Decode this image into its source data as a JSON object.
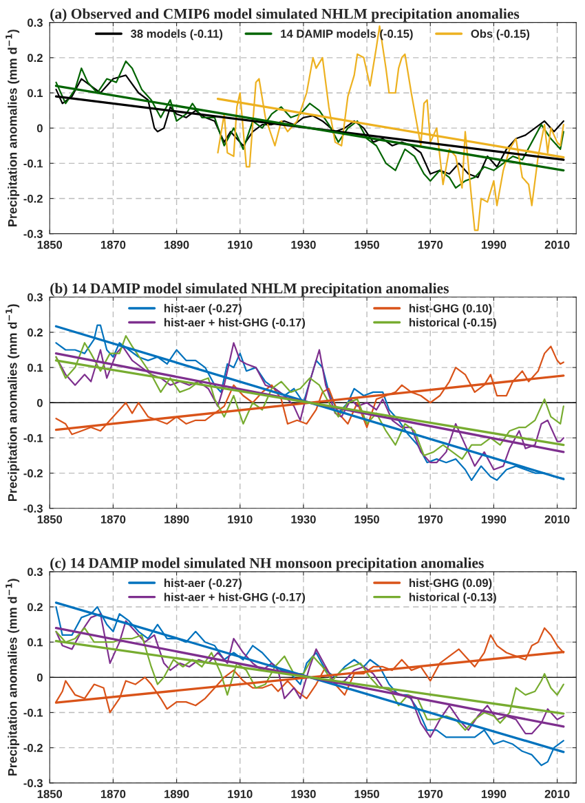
{
  "chart_data": [
    {
      "type": "line",
      "title": "(a) Observed and CMIP6 model simulated NHLM precipitation anomalies",
      "ylabel": "Precipitation anomalies (mm d$^{−1}$)",
      "xlim": [
        1850,
        2016
      ],
      "xticks": [
        1850,
        1870,
        1890,
        1910,
        1930,
        1950,
        1970,
        1990,
        2010
      ],
      "ylim": [
        -0.3,
        0.3
      ],
      "yticks": [
        -0.3,
        -0.2,
        -0.1,
        0,
        0.1,
        0.2,
        0.3
      ],
      "grid": true,
      "legend": "top",
      "line_style": "solid",
      "marker": "none",
      "series": [
        {
          "name": "38 models (-0.11)",
          "color": "#000000",
          "x": [
            1852,
            1854,
            1857,
            1860,
            1863,
            1866,
            1870,
            1874,
            1878,
            1881,
            1883,
            1884,
            1886,
            1888,
            1890,
            1893,
            1896,
            1899,
            1902,
            1905,
            1907,
            1911,
            1914,
            1917,
            1920,
            1924,
            1927,
            1930,
            1933,
            1936,
            1940,
            1943,
            1946,
            1949,
            1952,
            1955,
            1958,
            1961,
            1964,
            1967,
            1970,
            1973,
            1976,
            1979,
            1982,
            1985,
            1988,
            1991,
            1994,
            1997,
            2000,
            2003,
            2006,
            2009,
            2012
          ],
          "values": [
            0.11,
            0.07,
            0.09,
            0.14,
            0.12,
            0.1,
            0.14,
            0.15,
            0.1,
            0.08,
            0.0,
            -0.01,
            0.0,
            0.06,
            0.04,
            0.03,
            0.05,
            0.03,
            0.02,
            -0.04,
            -0.01,
            -0.05,
            -0.01,
            0.01,
            0.01,
            0.02,
            0.01,
            0.03,
            0.035,
            0.02,
            -0.01,
            0.0,
            0.02,
            0.0,
            -0.04,
            -0.03,
            -0.05,
            -0.04,
            -0.05,
            -0.07,
            -0.13,
            -0.12,
            -0.13,
            -0.1,
            -0.13,
            -0.14,
            -0.08,
            -0.11,
            -0.06,
            -0.03,
            -0.02,
            0.0,
            0.02,
            -0.01,
            0.02
          ]
        },
        {
          "name": "14 DAMIP models (-0.15)",
          "color": "#006400",
          "x": [
            1852,
            1855,
            1858,
            1860,
            1862,
            1865,
            1868,
            1871,
            1874,
            1876,
            1879,
            1882,
            1885,
            1888,
            1890,
            1893,
            1895,
            1898,
            1902,
            1905,
            1908,
            1911,
            1914,
            1917,
            1920,
            1923,
            1926,
            1929,
            1932,
            1935,
            1938,
            1941,
            1944,
            1947,
            1950,
            1953,
            1956,
            1959,
            1962,
            1965,
            1968,
            1970,
            1973,
            1976,
            1978,
            1981,
            1984,
            1987,
            1990,
            1993,
            1996,
            1999,
            2002,
            2005,
            2008,
            2011,
            2012
          ],
          "values": [
            0.13,
            0.07,
            0.11,
            0.17,
            0.13,
            0.1,
            0.14,
            0.13,
            0.19,
            0.17,
            0.11,
            0.08,
            0.03,
            0.08,
            0.02,
            0.04,
            0.07,
            0.03,
            0.03,
            -0.05,
            0.0,
            -0.06,
            0.02,
            0.0,
            0.04,
            0.06,
            0.03,
            0.04,
            0.07,
            0.05,
            0.01,
            -0.04,
            0.0,
            0.02,
            -0.03,
            -0.05,
            -0.1,
            -0.12,
            -0.06,
            -0.08,
            -0.13,
            -0.15,
            -0.12,
            -0.14,
            -0.17,
            -0.15,
            -0.14,
            -0.11,
            -0.12,
            -0.1,
            -0.08,
            -0.09,
            -0.04,
            0.01,
            -0.03,
            -0.06,
            -0.01
          ]
        },
        {
          "name": "Obs (-0.15)",
          "color": "#edb120",
          "x": [
            1903,
            1905,
            1906,
            1908,
            1909,
            1910,
            1912,
            1913,
            1915,
            1916,
            1918,
            1921,
            1923,
            1925,
            1928,
            1931,
            1933,
            1934,
            1936,
            1938,
            1940,
            1942,
            1944,
            1946,
            1947,
            1949,
            1951,
            1953,
            1954,
            1956,
            1957,
            1959,
            1960,
            1961,
            1962,
            1964,
            1966,
            1967,
            1968,
            1969,
            1970,
            1972,
            1974,
            1976,
            1978,
            1980,
            1981,
            1983,
            1984,
            1985,
            1986,
            1988,
            1990,
            1991,
            1993,
            1995,
            1997,
            1999,
            2001,
            2002,
            2004,
            2006,
            2007,
            2008,
            2010,
            2011,
            2012
          ],
          "values": [
            -0.07,
            0.04,
            -0.07,
            -0.08,
            0.06,
            0.1,
            -0.11,
            -0.11,
            0.13,
            0.14,
            0.03,
            -0.05,
            0.02,
            -0.01,
            0.02,
            0.1,
            0.2,
            0.17,
            0.2,
            0.06,
            -0.04,
            -0.05,
            0.09,
            0.15,
            0.21,
            0.2,
            0.12,
            0.23,
            0.29,
            0.17,
            0.1,
            0.1,
            0.17,
            0.2,
            0.21,
            0.1,
            0.0,
            -0.05,
            0.07,
            0.08,
            -0.04,
            0.0,
            -0.16,
            -0.06,
            -0.08,
            -0.17,
            -0.01,
            -0.2,
            -0.29,
            -0.29,
            -0.2,
            -0.21,
            -0.15,
            -0.22,
            -0.12,
            -0.06,
            -0.03,
            -0.14,
            -0.16,
            -0.22,
            -0.08,
            0.01,
            -0.07,
            0.0,
            -0.04,
            -0.05,
            0.01
          ]
        },
        {
          "color": "#000000",
          "x": [
            1852,
            2012
          ],
          "values": [
            0.09,
            -0.09
          ]
        },
        {
          "color": "#006400",
          "x": [
            1852,
            2012
          ],
          "values": [
            0.12,
            -0.12
          ]
        },
        {
          "color": "#edb120",
          "x": [
            1903,
            2012
          ],
          "values": [
            0.083,
            -0.083
          ]
        }
      ]
    },
    {
      "type": "line",
      "title": "(b) 14 DAMIP model simulated NHLM precipitation anomalies",
      "ylabel": "Precipitation anomalies (mm d$^{−1}$)",
      "xlim": [
        1850,
        2016
      ],
      "xticks": [
        1850,
        1870,
        1890,
        1910,
        1930,
        1950,
        1970,
        1990,
        2010
      ],
      "ylim": [
        -0.3,
        0.3
      ],
      "yticks": [
        -0.3,
        -0.2,
        -0.1,
        0,
        0.1,
        0.2,
        0.3
      ],
      "grid": true,
      "legend": "top",
      "line_style": "solid",
      "marker": "none",
      "ref_lines": [
        {
          "axis": "y",
          "value": 0,
          "color": "#000000"
        }
      ],
      "series": [
        {
          "name": "hist-aer (-0.27)",
          "color": "#0072bd",
          "x": [
            1852,
            1855,
            1858,
            1861,
            1864,
            1865,
            1866,
            1868,
            1870,
            1872,
            1875,
            1878,
            1881,
            1884,
            1887,
            1890,
            1893,
            1896,
            1899,
            1902,
            1904,
            1906,
            1908,
            1910,
            1912,
            1915,
            1918,
            1921,
            1924,
            1927,
            1930,
            1932,
            1934,
            1936,
            1938,
            1941,
            1944,
            1946,
            1949,
            1952,
            1955,
            1957,
            1960,
            1963,
            1966,
            1969,
            1972,
            1975,
            1978,
            1981,
            1983,
            1986,
            1989,
            1991,
            1994,
            1997,
            2000,
            2003,
            2006,
            2009,
            2012
          ],
          "values": [
            0.17,
            0.15,
            0.15,
            0.14,
            0.18,
            0.22,
            0.22,
            0.15,
            0.13,
            0.17,
            0.15,
            0.13,
            0.12,
            0.13,
            0.11,
            0.15,
            0.12,
            0.12,
            0.1,
            0.05,
            0.03,
            0.11,
            0.1,
            0.14,
            0.09,
            0.1,
            0.06,
            0.04,
            0.02,
            0.04,
            0.0,
            0.06,
            0.12,
            0.1,
            0.03,
            -0.03,
            0.0,
            0.04,
            0.02,
            0.03,
            0.03,
            -0.02,
            -0.05,
            -0.09,
            -0.12,
            -0.17,
            -0.16,
            -0.17,
            -0.16,
            -0.19,
            -0.22,
            -0.18,
            -0.21,
            -0.22,
            -0.19,
            -0.18,
            -0.19,
            -0.2,
            -0.2,
            -0.21,
            -0.215
          ]
        },
        {
          "name": "hist-GHG (0.10)",
          "color": "#d95319",
          "x": [
            1852,
            1855,
            1857,
            1860,
            1863,
            1866,
            1869,
            1872,
            1874,
            1876,
            1878,
            1881,
            1884,
            1887,
            1890,
            1893,
            1896,
            1899,
            1902,
            1905,
            1908,
            1911,
            1914,
            1917,
            1920,
            1923,
            1925,
            1928,
            1931,
            1934,
            1936,
            1938,
            1941,
            1944,
            1947,
            1950,
            1953,
            1956,
            1959,
            1961,
            1964,
            1967,
            1970,
            1973,
            1976,
            1978,
            1981,
            1984,
            1987,
            1989,
            1991,
            1994,
            1996,
            1999,
            2001,
            2004,
            2006,
            2008,
            2010,
            2011,
            2012
          ],
          "values": [
            -0.045,
            -0.06,
            -0.09,
            -0.08,
            -0.07,
            -0.08,
            -0.05,
            -0.02,
            0.0,
            -0.03,
            0.0,
            -0.04,
            -0.05,
            -0.06,
            -0.04,
            -0.06,
            -0.05,
            -0.05,
            -0.03,
            -0.01,
            0.05,
            0.02,
            0.0,
            0.03,
            0.05,
            0.01,
            -0.06,
            -0.05,
            -0.06,
            -0.02,
            0.03,
            0.04,
            -0.03,
            -0.06,
            0.0,
            -0.07,
            0.01,
            0.02,
            0.03,
            0.05,
            0.03,
            0.02,
            0.0,
            0.02,
            0.06,
            0.1,
            0.08,
            0.03,
            0.05,
            0.08,
            0.02,
            0.02,
            0.06,
            0.09,
            0.06,
            0.09,
            0.14,
            0.16,
            0.12,
            0.11,
            0.115
          ]
        },
        {
          "name": "hist-aer + hist-GHG (-0.17)",
          "color": "#7e2f8e",
          "x": [
            1852,
            1855,
            1858,
            1861,
            1863,
            1866,
            1868,
            1871,
            1873,
            1876,
            1879,
            1882,
            1885,
            1888,
            1891,
            1894,
            1897,
            1900,
            1903,
            1905,
            1908,
            1910,
            1912,
            1915,
            1918,
            1921,
            1924,
            1927,
            1929,
            1932,
            1935,
            1937,
            1940,
            1942,
            1945,
            1947,
            1950,
            1953,
            1955,
            1958,
            1961,
            1964,
            1967,
            1970,
            1972,
            1975,
            1978,
            1981,
            1984,
            1987,
            1990,
            1993,
            1995,
            1998,
            2000,
            2003,
            2005,
            2007,
            2010,
            2011,
            2012
          ],
          "values": [
            0.13,
            0.08,
            0.05,
            0.08,
            0.06,
            0.15,
            0.07,
            0.14,
            0.16,
            0.12,
            0.1,
            0.08,
            0.07,
            0.05,
            0.06,
            0.05,
            0.06,
            0.04,
            -0.01,
            0.05,
            0.17,
            0.12,
            0.11,
            0.1,
            0.05,
            0.04,
            0.02,
            -0.01,
            -0.05,
            0.06,
            0.15,
            0.05,
            -0.03,
            -0.04,
            0.01,
            -0.01,
            0.0,
            -0.02,
            0.01,
            -0.05,
            -0.07,
            -0.07,
            -0.14,
            -0.17,
            -0.17,
            -0.14,
            -0.06,
            -0.12,
            -0.18,
            -0.14,
            -0.19,
            -0.18,
            -0.13,
            -0.08,
            -0.13,
            -0.12,
            -0.06,
            -0.05,
            -0.11,
            -0.11,
            -0.1
          ]
        },
        {
          "name": "historical (-0.15)",
          "color": "#77ac30",
          "x": [
            1852,
            1855,
            1858,
            1861,
            1863,
            1866,
            1869,
            1872,
            1874,
            1876,
            1879,
            1882,
            1885,
            1888,
            1891,
            1894,
            1897,
            1900,
            1902,
            1905,
            1908,
            1911,
            1914,
            1917,
            1920,
            1923,
            1926,
            1929,
            1932,
            1935,
            1938,
            1941,
            1944,
            1947,
            1950,
            1953,
            1956,
            1959,
            1962,
            1965,
            1968,
            1971,
            1974,
            1977,
            1980,
            1983,
            1986,
            1989,
            1992,
            1995,
            1998,
            2000,
            2003,
            2006,
            2008,
            2011,
            2012
          ],
          "values": [
            0.13,
            0.07,
            0.1,
            0.17,
            0.14,
            0.09,
            0.14,
            0.14,
            0.19,
            0.16,
            0.12,
            0.08,
            0.03,
            0.07,
            0.03,
            0.04,
            0.06,
            0.07,
            0.01,
            -0.04,
            0.02,
            -0.06,
            0.0,
            -0.02,
            0.04,
            0.06,
            0.03,
            0.04,
            0.07,
            0.05,
            0.0,
            -0.04,
            0.0,
            0.01,
            -0.06,
            -0.03,
            -0.08,
            -0.12,
            -0.06,
            -0.08,
            -0.15,
            -0.14,
            -0.12,
            -0.14,
            -0.16,
            -0.12,
            -0.12,
            -0.1,
            -0.12,
            -0.08,
            -0.07,
            -0.07,
            -0.05,
            0.01,
            -0.04,
            -0.06,
            -0.01
          ]
        },
        {
          "color": "#0072bd",
          "x": [
            1852,
            2012
          ],
          "values": [
            0.217,
            -0.217
          ]
        },
        {
          "color": "#d95319",
          "x": [
            1852,
            2012
          ],
          "values": [
            -0.077,
            0.077
          ]
        },
        {
          "color": "#7e2f8e",
          "x": [
            1852,
            2012
          ],
          "values": [
            0.14,
            -0.14
          ]
        },
        {
          "color": "#77ac30",
          "x": [
            1852,
            2012
          ],
          "values": [
            0.12,
            -0.12
          ]
        }
      ]
    },
    {
      "type": "line",
      "title": "(c) 14 DAMIP model simulated NH monsoon precipitation anomalies",
      "ylabel": "Precipitation anomalies (mm d$^{−1}$)",
      "xlim": [
        1850,
        2016
      ],
      "xticks": [
        1850,
        1870,
        1890,
        1910,
        1930,
        1950,
        1970,
        1990,
        2010
      ],
      "ylim": [
        -0.3,
        0.3
      ],
      "yticks": [
        -0.3,
        -0.2,
        -0.1,
        0,
        0.1,
        0.2,
        0.3
      ],
      "grid": true,
      "legend": "top",
      "line_style": "solid",
      "marker": "none",
      "ref_lines": [
        {
          "axis": "y",
          "value": 0,
          "color": "#000000"
        }
      ],
      "series": [
        {
          "name": "hist-aer (-0.27)",
          "color": "#0072bd",
          "x": [
            1852,
            1854,
            1857,
            1860,
            1863,
            1865,
            1868,
            1870,
            1872,
            1875,
            1878,
            1881,
            1884,
            1887,
            1890,
            1893,
            1896,
            1899,
            1902,
            1905,
            1908,
            1911,
            1914,
            1917,
            1920,
            1923,
            1926,
            1929,
            1931,
            1934,
            1937,
            1940,
            1943,
            1946,
            1949,
            1951,
            1954,
            1957,
            1960,
            1963,
            1966,
            1969,
            1972,
            1975,
            1978,
            1981,
            1984,
            1987,
            1990,
            1993,
            1996,
            1999,
            2002,
            2005,
            2007,
            2009,
            2012
          ],
          "values": [
            0.2,
            0.12,
            0.12,
            0.17,
            0.18,
            0.2,
            0.15,
            0.13,
            0.18,
            0.16,
            0.13,
            0.11,
            0.15,
            0.11,
            0.11,
            0.1,
            0.13,
            0.1,
            0.09,
            0.05,
            0.07,
            0.05,
            0.09,
            0.07,
            0.04,
            0.02,
            0.01,
            -0.02,
            0.04,
            0.07,
            0.02,
            0.0,
            0.03,
            0.05,
            0.03,
            0.05,
            0.03,
            -0.02,
            -0.05,
            -0.05,
            -0.09,
            -0.15,
            -0.15,
            -0.17,
            -0.17,
            -0.17,
            -0.17,
            -0.15,
            -0.19,
            -0.18,
            -0.19,
            -0.21,
            -0.22,
            -0.25,
            -0.24,
            -0.2,
            -0.18
          ]
        },
        {
          "name": "hist-GHG (0.09)",
          "color": "#d95319",
          "x": [
            1852,
            1854,
            1855,
            1858,
            1861,
            1864,
            1867,
            1869,
            1872,
            1874,
            1877,
            1880,
            1882,
            1885,
            1887,
            1890,
            1893,
            1896,
            1899,
            1902,
            1905,
            1908,
            1911,
            1914,
            1917,
            1920,
            1922,
            1925,
            1928,
            1931,
            1934,
            1937,
            1940,
            1943,
            1946,
            1949,
            1952,
            1955,
            1958,
            1961,
            1964,
            1967,
            1970,
            1973,
            1976,
            1979,
            1982,
            1984,
            1987,
            1989,
            1991,
            1994,
            1997,
            2000,
            2002,
            2004,
            2006,
            2008,
            2010,
            2012
          ],
          "values": [
            -0.07,
            -0.04,
            -0.01,
            -0.05,
            -0.06,
            -0.02,
            -0.03,
            -0.1,
            -0.06,
            -0.01,
            -0.02,
            0.0,
            -0.02,
            -0.06,
            -0.09,
            -0.07,
            -0.07,
            -0.08,
            -0.06,
            -0.03,
            0.0,
            0.02,
            -0.01,
            -0.03,
            -0.03,
            -0.02,
            -0.04,
            -0.01,
            -0.04,
            -0.06,
            -0.02,
            0.03,
            -0.02,
            -0.05,
            0.01,
            0.01,
            0.03,
            0.03,
            0.02,
            0.05,
            0.02,
            0.03,
            -0.01,
            0.04,
            0.06,
            0.08,
            0.05,
            0.03,
            0.07,
            0.12,
            0.09,
            0.07,
            0.06,
            0.05,
            0.09,
            0.1,
            0.14,
            0.12,
            0.09,
            0.07
          ]
        },
        {
          "name": "hist-aer + hist-GHG (-0.17)",
          "color": "#7e2f8e",
          "x": [
            1852,
            1854,
            1857,
            1860,
            1863,
            1866,
            1869,
            1872,
            1874,
            1877,
            1880,
            1883,
            1886,
            1888,
            1891,
            1894,
            1897,
            1900,
            1903,
            1906,
            1908,
            1911,
            1914,
            1917,
            1920,
            1922,
            1924,
            1927,
            1929,
            1932,
            1934,
            1937,
            1940,
            1943,
            1946,
            1949,
            1952,
            1955,
            1958,
            1961,
            1964,
            1967,
            1970,
            1973,
            1976,
            1979,
            1982,
            1985,
            1988,
            1991,
            1994,
            1997,
            2000,
            2002,
            2005,
            2007,
            2010,
            2012
          ],
          "values": [
            0.13,
            0.09,
            0.08,
            0.13,
            0.17,
            0.18,
            0.04,
            0.1,
            0.16,
            0.13,
            0.1,
            0.12,
            0.04,
            0.02,
            0.04,
            0.03,
            0.05,
            0.04,
            0.07,
            0.04,
            0.11,
            0.07,
            0.04,
            0.02,
            0.04,
            0.02,
            -0.06,
            -0.03,
            -0.06,
            0.03,
            0.08,
            0.03,
            -0.02,
            -0.01,
            0.02,
            0.03,
            0.01,
            -0.03,
            -0.04,
            -0.05,
            -0.06,
            -0.13,
            -0.17,
            -0.12,
            -0.08,
            -0.12,
            -0.15,
            -0.11,
            -0.08,
            -0.12,
            -0.11,
            -0.12,
            -0.16,
            -0.16,
            -0.13,
            -0.09,
            -0.12,
            -0.11
          ]
        },
        {
          "name": "historical (-0.13)",
          "color": "#77ac30",
          "x": [
            1852,
            1855,
            1858,
            1861,
            1864,
            1867,
            1870,
            1873,
            1876,
            1879,
            1882,
            1884,
            1886,
            1889,
            1892,
            1895,
            1898,
            1901,
            1904,
            1906,
            1909,
            1912,
            1915,
            1918,
            1921,
            1924,
            1927,
            1930,
            1933,
            1936,
            1939,
            1942,
            1945,
            1948,
            1951,
            1954,
            1957,
            1960,
            1963,
            1966,
            1969,
            1972,
            1975,
            1978,
            1981,
            1984,
            1987,
            1990,
            1992,
            1995,
            1997,
            2000,
            2003,
            2005,
            2006,
            2008,
            2010,
            2012
          ],
          "values": [
            0.13,
            0.1,
            0.11,
            0.14,
            0.1,
            0.1,
            0.1,
            0.11,
            0.11,
            0.12,
            0.03,
            -0.02,
            0.0,
            0.05,
            0.03,
            0.05,
            0.03,
            0.07,
            0.01,
            -0.05,
            0.04,
            0.02,
            -0.03,
            -0.02,
            0.03,
            0.06,
            0.01,
            0.01,
            0.06,
            0.03,
            -0.01,
            0.02,
            0.03,
            0.04,
            0.0,
            -0.03,
            -0.03,
            -0.08,
            -0.05,
            -0.06,
            -0.12,
            -0.12,
            -0.11,
            -0.12,
            -0.15,
            -0.12,
            -0.1,
            -0.11,
            -0.13,
            -0.1,
            -0.03,
            -0.05,
            -0.04,
            -0.01,
            0.01,
            -0.03,
            -0.05,
            -0.02
          ]
        },
        {
          "color": "#0072bd",
          "x": [
            1852,
            2012
          ],
          "values": [
            0.212,
            -0.212
          ]
        },
        {
          "color": "#d95319",
          "x": [
            1852,
            2012
          ],
          "values": [
            -0.072,
            0.072
          ]
        },
        {
          "color": "#7e2f8e",
          "x": [
            1852,
            2012
          ],
          "values": [
            0.14,
            -0.14
          ]
        },
        {
          "color": "#77ac30",
          "x": [
            1852,
            2012
          ],
          "values": [
            0.103,
            -0.103
          ]
        }
      ]
    }
  ]
}
